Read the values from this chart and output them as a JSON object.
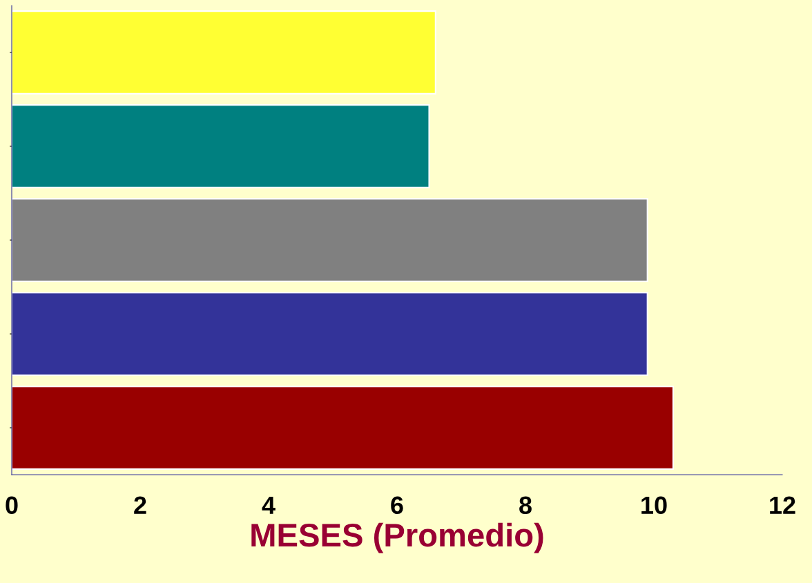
{
  "chart_data": {
    "type": "bar",
    "orientation": "horizontal",
    "xlabel": "MESES (Promedio)",
    "categories": [
      null,
      null,
      null,
      null,
      null
    ],
    "values": [
      6.6,
      6.5,
      9.9,
      9.9,
      10.3
    ],
    "colors": [
      "#ffff33",
      "#008080",
      "#808080",
      "#333399",
      "#990000"
    ],
    "xlim": [
      0,
      12
    ],
    "xticks": [
      0,
      2,
      4,
      6,
      8,
      10,
      12
    ],
    "tick_labels": "x",
    "grid": false
  }
}
